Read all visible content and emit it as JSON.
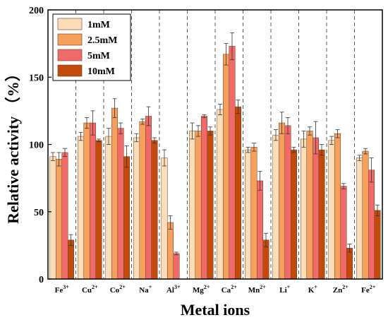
{
  "chart_data": {
    "type": "bar",
    "xlabel": "Metal ions",
    "ylabel": "Relative activity",
    "ylabel_unit": "（%）",
    "ylim": [
      0,
      200
    ],
    "yticks": [
      0,
      50,
      100,
      150,
      200
    ],
    "categories": [
      {
        "base": "Fe",
        "sup": "3+"
      },
      {
        "base": "Cu",
        "sup": "2+"
      },
      {
        "base": "Co",
        "sup": "2+"
      },
      {
        "base": "Na",
        "sup": "+"
      },
      {
        "base": "Al",
        "sup": "3+"
      },
      {
        "base": "Mg",
        "sup": "2+"
      },
      {
        "base": "Ca",
        "sup": "2+"
      },
      {
        "base": "Mn",
        "sup": "2+"
      },
      {
        "base": "Li",
        "sup": "+"
      },
      {
        "base": "K",
        "sup": "+"
      },
      {
        "base": "Zn",
        "sup": "2+"
      },
      {
        "base": "Fe",
        "sup": "2+"
      }
    ],
    "series": [
      {
        "name": "1mM",
        "color": "#FCDDBA",
        "values": [
          91,
          106,
          106,
          105,
          90,
          110,
          126,
          96,
          107,
          104,
          103,
          90
        ],
        "errors": [
          3,
          3,
          6,
          3,
          6,
          6,
          4,
          2,
          4,
          6,
          3,
          2
        ]
      },
      {
        "name": "2.5mM",
        "color": "#F5A05C",
        "values": [
          89,
          116,
          127,
          117,
          42,
          110,
          167,
          98,
          116,
          110,
          108,
          95
        ],
        "errors": [
          5,
          4,
          7,
          2,
          5,
          4,
          8,
          3,
          8,
          3,
          3,
          2
        ]
      },
      {
        "name": "5mM",
        "color": "#F06A6A",
        "values": [
          94,
          116,
          112,
          121,
          19,
          121,
          173,
          73,
          114,
          105,
          69,
          81
        ],
        "errors": [
          3,
          9,
          4,
          7,
          1,
          1,
          10,
          7,
          6,
          12,
          2,
          9
        ]
      },
      {
        "name": "10mM",
        "color": "#C24A0A",
        "values": [
          29,
          103,
          91,
          103,
          0,
          110,
          128,
          29,
          96,
          96,
          23,
          51
        ],
        "errors": [
          4,
          1,
          8,
          2,
          0,
          3,
          5,
          5,
          2,
          4,
          3,
          4
        ]
      }
    ],
    "legend_position": "top-left",
    "grid": false,
    "category_separators": "dashed"
  }
}
